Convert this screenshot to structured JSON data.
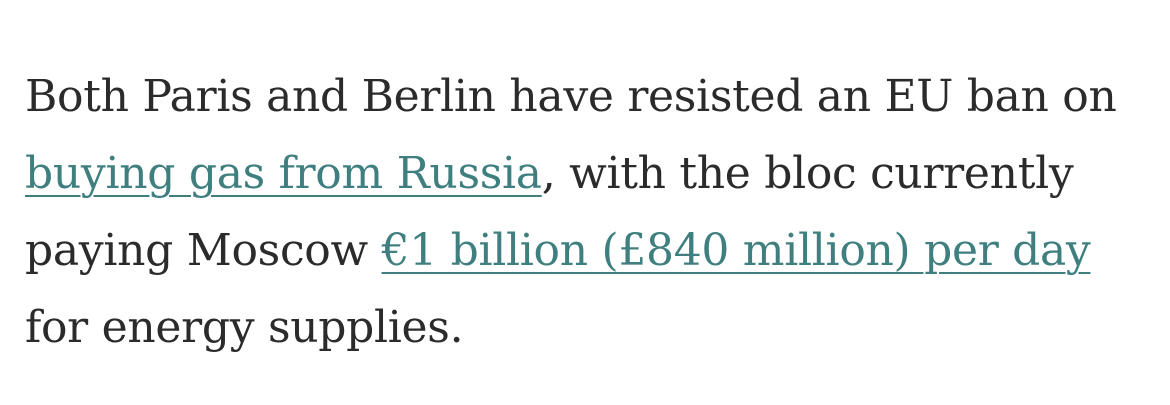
{
  "article": {
    "paragraph": {
      "text_before_link1": "Both Paris and Berlin have resisted an EU ban on ",
      "link1": "buying gas from Russia",
      "text_between_links": ", with the bloc currently paying Moscow ",
      "link2": "€1 billion (£840 million) per day",
      "text_after_link2": " for energy supplies."
    }
  },
  "colors": {
    "text": "#2b2b2b",
    "link": "#3f7f7f",
    "background": "#ffffff"
  }
}
